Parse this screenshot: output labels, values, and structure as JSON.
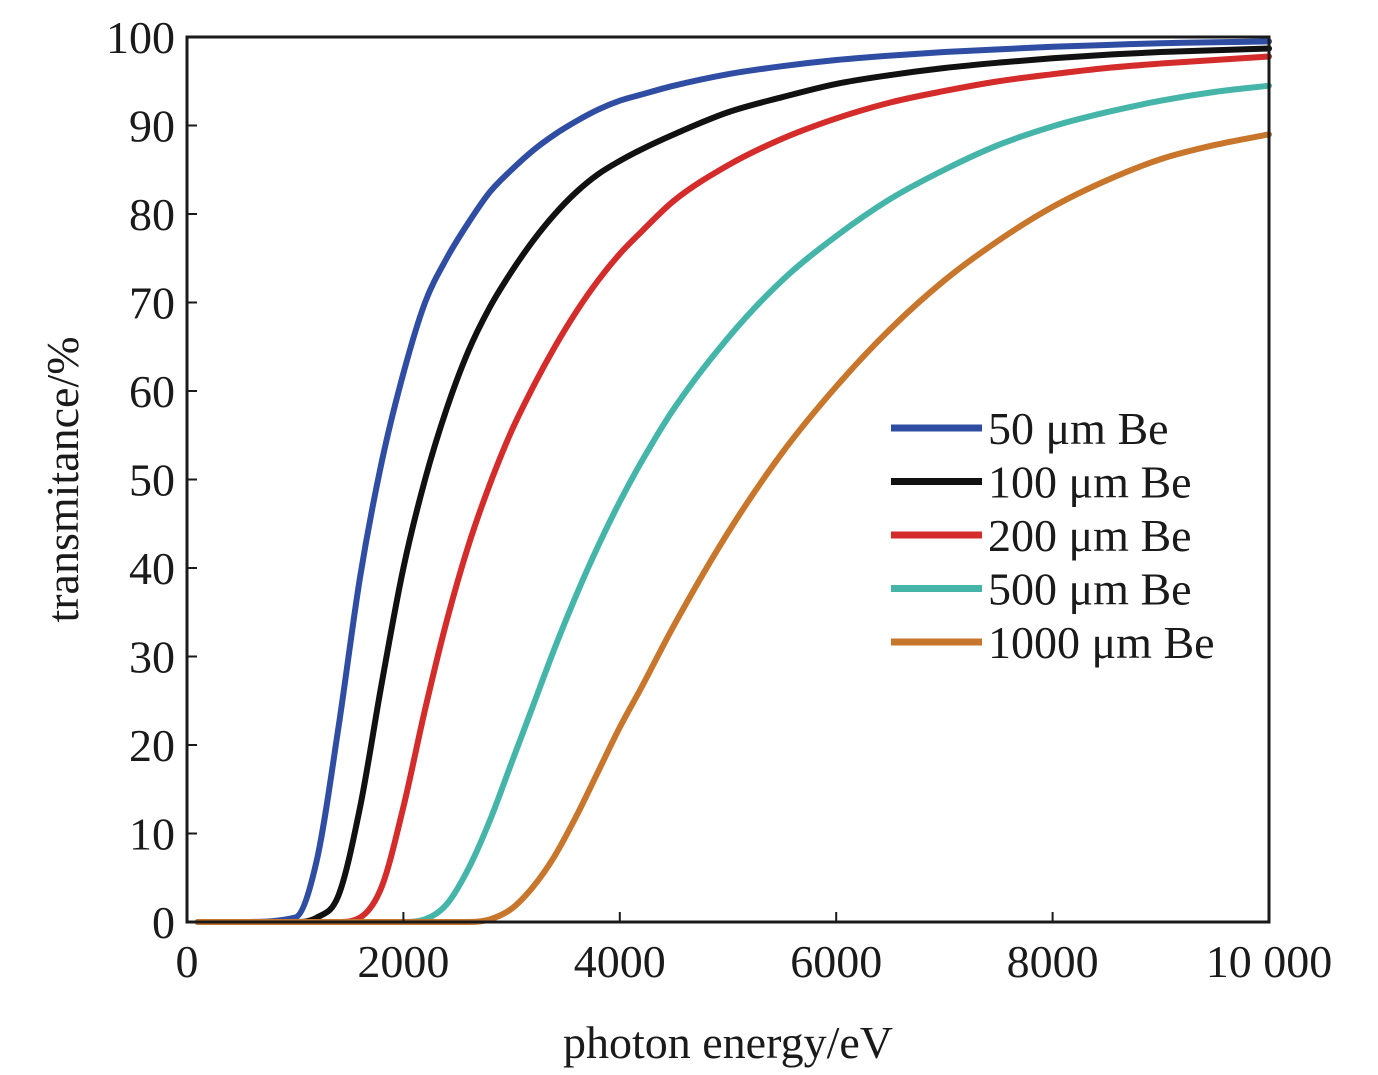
{
  "chart_data": {
    "type": "line",
    "title": "",
    "xlabel": "photon energy/eV",
    "ylabel": "transmitance/%",
    "xlim": [
      0,
      10000
    ],
    "ylim": [
      0,
      100
    ],
    "x_ticks": [
      0,
      2000,
      4000,
      6000,
      8000,
      10000
    ],
    "x_tick_labels": [
      "0",
      "2000",
      "4000",
      "6000",
      "8000",
      "10 000"
    ],
    "y_ticks": [
      0,
      10,
      20,
      30,
      40,
      50,
      60,
      70,
      80,
      90,
      100
    ],
    "y_tick_labels": [
      "0",
      "10",
      "20",
      "30",
      "40",
      "50",
      "60",
      "70",
      "80",
      "90",
      "100"
    ],
    "grid": false,
    "legend_position": "right",
    "x": [
      100,
      500,
      1000,
      1200,
      1400,
      1600,
      1800,
      2000,
      2200,
      2400,
      2600,
      2800,
      3000,
      3200,
      3400,
      3600,
      3800,
      4000,
      4200,
      4500,
      5000,
      5500,
      6000,
      6500,
      7000,
      7500,
      8000,
      8500,
      9000,
      9500,
      10000
    ],
    "series": [
      {
        "name": "50 μm Be",
        "color": "#2f4ea3",
        "values": [
          0,
          0,
          0.5,
          7,
          22,
          39,
          52,
          62,
          70,
          75,
          79,
          82.5,
          85,
          87.2,
          89,
          90.5,
          91.8,
          92.8,
          93.5,
          94.5,
          95.8,
          96.7,
          97.4,
          97.9,
          98.3,
          98.6,
          98.9,
          99.1,
          99.3,
          99.4,
          99.5
        ]
      },
      {
        "name": "100 μm Be",
        "color": "#111111",
        "values": [
          0,
          0,
          0,
          0.5,
          3,
          13,
          27,
          40,
          50,
          58,
          64.5,
          69.5,
          73.5,
          77,
          80,
          82.5,
          84.5,
          86,
          87.3,
          89,
          91.5,
          93.2,
          94.7,
          95.7,
          96.5,
          97.1,
          97.6,
          98,
          98.3,
          98.5,
          98.7
        ]
      },
      {
        "name": "200 μm Be",
        "color": "#d42b2b",
        "values": [
          0,
          0,
          0,
          0,
          0,
          0.5,
          4,
          13,
          24,
          34,
          42.5,
          49.5,
          55.5,
          60.5,
          65,
          69,
          72.5,
          75.5,
          78,
          81.5,
          85.5,
          88.5,
          90.8,
          92.6,
          93.9,
          95,
          95.8,
          96.5,
          97,
          97.4,
          97.8
        ]
      },
      {
        "name": "500 μm Be",
        "color": "#45b5aa",
        "values": [
          0,
          0,
          0,
          0,
          0,
          0,
          0,
          0,
          0.3,
          2,
          6,
          11.5,
          18,
          24.5,
          31,
          37,
          42.5,
          47.5,
          52,
          58,
          66,
          72.5,
          77.5,
          81.7,
          85,
          87.8,
          89.9,
          91.5,
          92.8,
          93.8,
          94.5
        ]
      },
      {
        "name": "1000 μm Be",
        "color": "#c8762c",
        "values": [
          0,
          0,
          0,
          0,
          0,
          0,
          0,
          0,
          0,
          0,
          0,
          0.3,
          1.5,
          4,
          7.5,
          12,
          17,
          22,
          26.5,
          33.5,
          44,
          53,
          60.5,
          67,
          72.5,
          77,
          80.8,
          83.8,
          86.2,
          87.8,
          89
        ]
      }
    ]
  }
}
